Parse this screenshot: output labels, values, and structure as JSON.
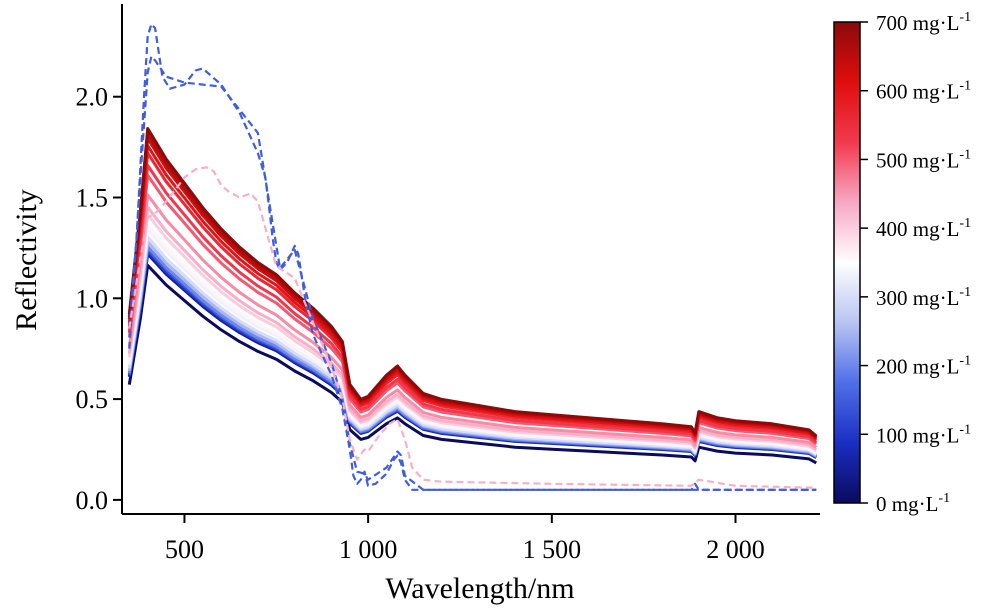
{
  "chart_data": {
    "type": "line",
    "xlabel": "Wavelength/nm",
    "ylabel": "Reflectivity",
    "xlim": [
      330,
      2230
    ],
    "ylim": [
      -0.07,
      2.45
    ],
    "x_ticks": [
      500,
      1000,
      1500,
      2000
    ],
    "x_tick_labels": [
      "500",
      "1 000",
      "1 500",
      "2 000"
    ],
    "y_ticks": [
      0.0,
      0.5,
      1.0,
      1.5,
      2.0
    ],
    "y_tick_labels": [
      "0.0",
      "0.5",
      "1.0",
      "1.5",
      "2.0"
    ],
    "grid": false,
    "legend": "colorbar-right",
    "colorbar": {
      "range": [
        0,
        700
      ],
      "ticks": [
        0,
        100,
        200,
        300,
        400,
        500,
        600,
        700
      ],
      "labels": [
        {
          "value": "0",
          "unit": "mg·L",
          "exp": "-1"
        },
        {
          "value": "100",
          "unit": "mg·L",
          "exp": "-1"
        },
        {
          "value": "200",
          "unit": "mg·L",
          "exp": "-1"
        },
        {
          "value": "300",
          "unit": "mg·L",
          "exp": "-1"
        },
        {
          "value": "400",
          "unit": "mg·L",
          "exp": "-1"
        },
        {
          "value": "500",
          "unit": "mg·L",
          "exp": "-1"
        },
        {
          "value": "600",
          "unit": "mg·L",
          "exp": "-1"
        },
        {
          "value": "700",
          "unit": "mg·L",
          "exp": "-1"
        }
      ],
      "colors": [
        "#0a0a5e",
        "#1a2fc2",
        "#4f6fe8",
        "#b9c4f2",
        "#ffffff",
        "#f7a8c4",
        "#f23a4e",
        "#e00d0d",
        "#8b0a0a"
      ]
    },
    "solid_shape": {
      "x": [
        350,
        380,
        400,
        420,
        450,
        500,
        550,
        600,
        650,
        700,
        750,
        800,
        850,
        900,
        930,
        950,
        980,
        1000,
        1050,
        1080,
        1100,
        1150,
        1200,
        1300,
        1400,
        1500,
        1600,
        1700,
        1800,
        1880,
        1890,
        1900,
        1950,
        2000,
        2100,
        2200,
        2220
      ],
      "y": [
        0.61,
        0.95,
        1.22,
        1.18,
        1.12,
        1.04,
        0.96,
        0.89,
        0.83,
        0.78,
        0.74,
        0.68,
        0.63,
        0.57,
        0.52,
        0.38,
        0.33,
        0.34,
        0.41,
        0.44,
        0.41,
        0.35,
        0.33,
        0.31,
        0.29,
        0.28,
        0.27,
        0.26,
        0.25,
        0.24,
        0.22,
        0.29,
        0.27,
        0.26,
        0.25,
        0.23,
        0.21
      ]
    },
    "solid_series": [
      {
        "concentration": 0,
        "offset": -0.02,
        "scale": 0.97
      },
      {
        "concentration": 50,
        "offset": 0.0,
        "scale": 1.0
      },
      {
        "concentration": 100,
        "offset": 0.0,
        "scale": 1.01
      },
      {
        "concentration": 150,
        "offset": 0.0,
        "scale": 1.02
      },
      {
        "concentration": 200,
        "offset": 0.0,
        "scale": 1.03
      },
      {
        "concentration": 250,
        "offset": 0.0,
        "scale": 1.05
      },
      {
        "concentration": 300,
        "offset": 0.0,
        "scale": 1.07
      },
      {
        "concentration": 330,
        "offset": 0.0,
        "scale": 1.1
      },
      {
        "concentration": 360,
        "offset": 0.0,
        "scale": 1.12
      },
      {
        "concentration": 400,
        "offset": 0.0,
        "scale": 1.16
      },
      {
        "concentration": 430,
        "offset": 0.0,
        "scale": 1.19
      },
      {
        "concentration": 460,
        "offset": 0.0,
        "scale": 1.24
      },
      {
        "concentration": 500,
        "offset": 0.0,
        "scale": 1.32
      },
      {
        "concentration": 530,
        "offset": 0.0,
        "scale": 1.36
      },
      {
        "concentration": 560,
        "offset": 0.0,
        "scale": 1.41
      },
      {
        "concentration": 600,
        "offset": 0.0,
        "scale": 1.44
      },
      {
        "concentration": 630,
        "offset": 0.0,
        "scale": 1.47
      },
      {
        "concentration": 660,
        "offset": 0.0,
        "scale": 1.49
      },
      {
        "concentration": 700,
        "offset": 0.0,
        "scale": 1.51
      }
    ],
    "dashed_series": [
      {
        "concentration": 150,
        "x": [
          350,
          370,
          390,
          400,
          410,
          420,
          440,
          460,
          500,
          530,
          550,
          600,
          650,
          700,
          720,
          730,
          740,
          750,
          760,
          780,
          800,
          810,
          830,
          850,
          900,
          930,
          950,
          960,
          970,
          980,
          990,
          1000,
          1020,
          1050,
          1070,
          1080,
          1090,
          1100,
          1120,
          1150,
          1200,
          1300,
          1500,
          1700,
          1880,
          1890,
          1900,
          2000,
          2220
        ],
        "y": [
          0.85,
          1.3,
          2.0,
          2.3,
          2.36,
          2.34,
          2.1,
          2.04,
          2.06,
          2.13,
          2.14,
          2.06,
          1.92,
          1.72,
          1.6,
          1.46,
          1.3,
          1.18,
          1.14,
          1.18,
          1.26,
          1.22,
          0.98,
          0.82,
          0.62,
          0.45,
          0.25,
          0.12,
          0.08,
          0.1,
          0.14,
          0.07,
          0.08,
          0.13,
          0.2,
          0.22,
          0.18,
          0.1,
          0.05,
          0.05,
          0.05,
          0.05,
          0.05,
          0.05,
          0.05,
          0.08,
          0.05,
          0.05,
          0.05
        ]
      },
      {
        "concentration": 150,
        "x": [
          350,
          380,
          400,
          410,
          420,
          450,
          500,
          600,
          700,
          760,
          800,
          850,
          900,
          930,
          950,
          970,
          990,
          1000,
          1050,
          1080,
          1090,
          1100,
          1150,
          1300,
          1880,
          2220
        ],
        "y": [
          0.75,
          1.6,
          2.12,
          2.2,
          2.18,
          2.1,
          2.07,
          2.05,
          1.82,
          1.15,
          1.24,
          0.9,
          0.68,
          0.5,
          0.28,
          0.14,
          0.13,
          0.1,
          0.16,
          0.24,
          0.22,
          0.12,
          0.05,
          0.05,
          0.05,
          0.05
        ]
      },
      {
        "concentration": 430,
        "x": [
          350,
          380,
          400,
          420,
          450,
          480,
          500,
          530,
          560,
          580,
          600,
          620,
          650,
          680,
          700,
          720,
          750,
          800,
          850,
          900,
          930,
          950,
          970,
          990,
          1000,
          1030,
          1060,
          1080,
          1100,
          1120,
          1150,
          1200,
          1500,
          1880,
          1900,
          2000,
          2220
        ],
        "y": [
          0.85,
          1.2,
          1.4,
          1.42,
          1.48,
          1.55,
          1.6,
          1.64,
          1.65,
          1.63,
          1.56,
          1.53,
          1.5,
          1.52,
          1.48,
          1.35,
          1.16,
          1.1,
          0.88,
          0.66,
          0.5,
          0.3,
          0.2,
          0.25,
          0.24,
          0.32,
          0.38,
          0.4,
          0.3,
          0.16,
          0.1,
          0.09,
          0.08,
          0.07,
          0.1,
          0.07,
          0.06
        ]
      }
    ]
  }
}
